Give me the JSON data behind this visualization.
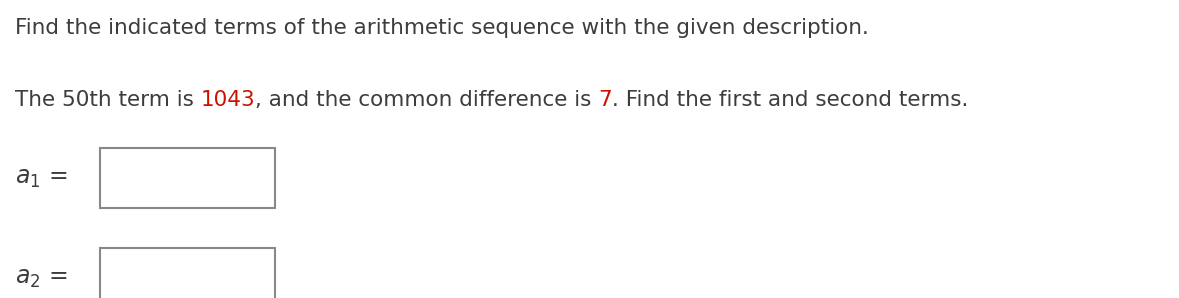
{
  "title_line": "Find the indicated terms of the arithmetic sequence with the given description.",
  "body_text_parts": [
    {
      "text": "The 50th term is ",
      "color": "#3d3d3d"
    },
    {
      "text": "1043",
      "color": "#cc1100"
    },
    {
      "text": ", and the common difference is ",
      "color": "#3d3d3d"
    },
    {
      "text": "7",
      "color": "#cc1100"
    },
    {
      "text": ". Find the first and second terms.",
      "color": "#3d3d3d"
    }
  ],
  "label1": "$a_1$ =",
  "label2": "$a_2$ =",
  "background_color": "#ffffff",
  "text_color": "#3d3d3d",
  "font_size_title": 15.5,
  "font_size_body": 15.5,
  "font_size_labels": 17,
  "box_edge_color": "#888888",
  "box_face_color": "#ffffff"
}
